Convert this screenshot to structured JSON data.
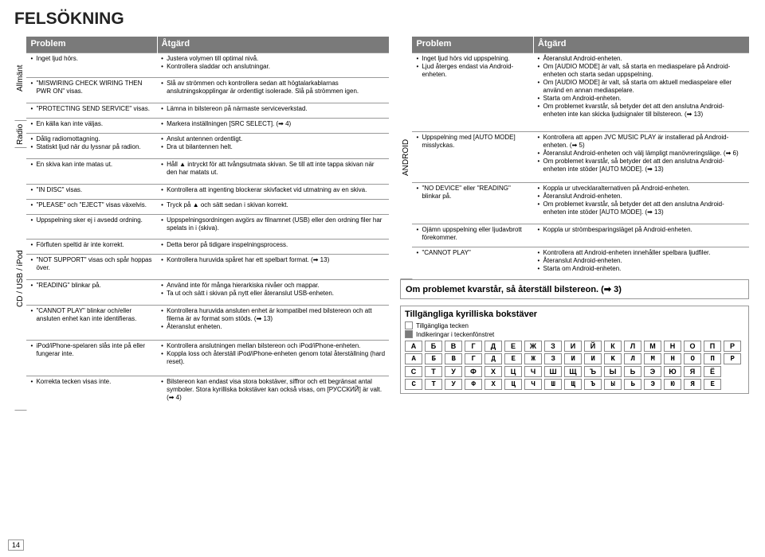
{
  "title": "FELSÖKNING",
  "headers": {
    "problem": "Problem",
    "action": "Åtgärd"
  },
  "sideLabels": {
    "general": "Allmänt",
    "radio": "Radio",
    "cd": "CD / USB / iPod",
    "android": "ANDROID"
  },
  "left": {
    "general": [
      {
        "p": "Inget ljud hörs.",
        "a": [
          "Justera volymen till optimal nivå.",
          "Kontrollera sladdar och anslutningar."
        ]
      },
      {
        "p": "\"MISWIRING CHECK WIRING THEN PWR ON\" visas.",
        "a": [
          "Slå av strömmen och kontrollera sedan att högtalarkablarnas anslutningskopplingar är ordentligt isolerade. Slå på strömmen igen."
        ]
      },
      {
        "p": "\"PROTECTING SEND SERVICE\" visas.",
        "a": [
          "Lämna in bilstereon på närmaste serviceverkstad."
        ]
      },
      {
        "p": "En källa kan inte väljas.",
        "a": [
          "Markera inställningen [SRC SELECT]. (➡ 4)"
        ]
      }
    ],
    "radio": [
      {
        "p": [
          "Dålig radiomottagning.",
          "Statiskt ljud när du lyssnar på radion."
        ],
        "a": [
          "Anslut antennen ordentligt.",
          "Dra ut bilantennen helt."
        ]
      }
    ],
    "cd": [
      {
        "p": "En skiva kan inte matas ut.",
        "a": [
          "Håll ▲ intryckt för att tvångsutmata skivan. Se till att inte tappa skivan när den har matats ut."
        ]
      },
      {
        "p": "\"IN DISC\" visas.",
        "a": [
          "Kontrollera att ingenting blockerar skivfacket vid utmatning av en skiva."
        ]
      },
      {
        "p": "\"PLEASE\" och \"EJECT\" visas växelvis.",
        "a": [
          "Tryck på ▲ och sätt sedan i skivan korrekt."
        ]
      },
      {
        "p": "Uppspelning sker ej i avsedd ordning.",
        "a": [
          "Uppspelningsordningen avgörs av filnamnet (USB) eller den ordning filer har spelats in i (skiva)."
        ]
      },
      {
        "p": "Förfluten speltid är inte korrekt.",
        "a": [
          "Detta beror på tidigare inspelningsprocess."
        ]
      },
      {
        "p": "\"NOT SUPPORT\" visas och spår hoppas över.",
        "a": [
          "Kontrollera huruvida spåret har ett spelbart format. (➡ 13)"
        ]
      },
      {
        "p": "\"READING\" blinkar på.",
        "a": [
          "Använd inte för många hierarkiska nivåer och mappar.",
          "Ta ut och sätt i skivan på nytt eller återanslut USB-enheten."
        ]
      },
      {
        "p": "\"CANNOT PLAY\" blinkar och/eller ansluten enhet kan inte identifieras.",
        "a": [
          "Kontrollera huruvida ansluten enhet är kompatibel med bilstereon och att filerna är av format som stöds. (➡ 13)",
          "Återanslut enheten."
        ]
      },
      {
        "p": "iPod/iPhone-spelaren slås inte på eller fungerar inte.",
        "a": [
          "Kontrollera anslutningen mellan bilstereon och iPod/iPhone-enheten.",
          "Koppla loss och återställ iPod/iPhone-enheten genom total återställning (hard reset)."
        ]
      },
      {
        "p": "Korrekta tecken visas inte.",
        "a": [
          "Bilstereon kan endast visa stora bokstäver, siffror och ett begränsat antal symboler. Stora kyrilliska bokstäver kan också visas, om [РУССКИЙ] är valt. (➡ 4)"
        ]
      }
    ]
  },
  "right": {
    "android": [
      {
        "p": [
          "Inget ljud hörs vid uppspelning.",
          "Ljud återges endast via Android-enheten."
        ],
        "a": [
          "Återanslut Android-enheten.",
          "Om [AUDIO MODE] är valt, så starta en mediaspelare på Android-enheten och starta sedan uppspelning.",
          "Om [AUDIO MODE] är valt, så starta om aktuell mediaspelare eller använd en annan mediaspelare.",
          "Starta om Android-enheten.",
          "Om problemet kvarstår, så betyder det att den anslutna Android-enheten inte kan skicka ljudsignaler till bilstereon. (➡ 13)"
        ]
      },
      {
        "p": [
          "Uppspelning med [AUTO MODE] misslyckas."
        ],
        "a": [
          "Kontrollera att appen JVC MUSIC PLAY är installerad på Android-enheten. (➡ 5)",
          "Återanslut Android-enheten och välj lämpligt manövreringsläge. (➡ 6)",
          "Om problemet kvarstår, så betyder det att den anslutna Android-enheten inte stöder [AUTO MODE]. (➡ 13)"
        ]
      },
      {
        "p": [
          "\"NO DEVICE\" eller \"READING\" blinkar på."
        ],
        "a": [
          "Koppla ur utvecklaralternativen på Android-enheten.",
          "Återanslut Android-enheten.",
          "Om problemet kvarstår, så betyder det att den anslutna Android-enheten inte stöder [AUTO MODE]. (➡ 13)"
        ]
      },
      {
        "p": [
          "Ojämn uppspelning eller ljudavbrott förekommer."
        ],
        "a": [
          "Koppla ur strömbesparingsläget på Android-enheten."
        ]
      },
      {
        "p": [
          "\"CANNOT PLAY\""
        ],
        "a": [
          "Kontrollera att Android-enheten innehåller spelbara ljudfiler.",
          "Återanslut Android-enheten.",
          "Starta om Android-enheten."
        ]
      }
    ]
  },
  "resetBanner": "Om problemet kvarstår, så återställ bilstereon. (➡ 3)",
  "cyr": {
    "title": "Tillgängliga kyrilliska bokstäver",
    "legend1": "Tillgängliga tecken",
    "legend2": "Indikeringar i teckenfönstret",
    "row1": [
      "А",
      "Б",
      "В",
      "Г",
      "Д",
      "Е",
      "Ж",
      "З",
      "И",
      "Й",
      "К",
      "Л",
      "М",
      "Н",
      "О",
      "П",
      "Р"
    ],
    "row1b": [
      "A",
      "Б",
      "B",
      "Г",
      "Д",
      "E",
      "Ж",
      "З",
      "И",
      "И",
      "K",
      "Л",
      "M",
      "H",
      "O",
      "П",
      "P"
    ],
    "row2": [
      "С",
      "Т",
      "У",
      "Ф",
      "Х",
      "Ц",
      "Ч",
      "Ш",
      "Щ",
      "Ъ",
      "Ы",
      "Ь",
      "Э",
      "Ю",
      "Я",
      "Ё"
    ],
    "row2b": [
      "C",
      "T",
      "У",
      "Ф",
      "X",
      "Ц",
      "Ч",
      "Ш",
      "Щ",
      "Ъ",
      "Ы",
      "Ь",
      "Э",
      "Ю",
      "Я",
      "E"
    ]
  },
  "pageNum": "14"
}
